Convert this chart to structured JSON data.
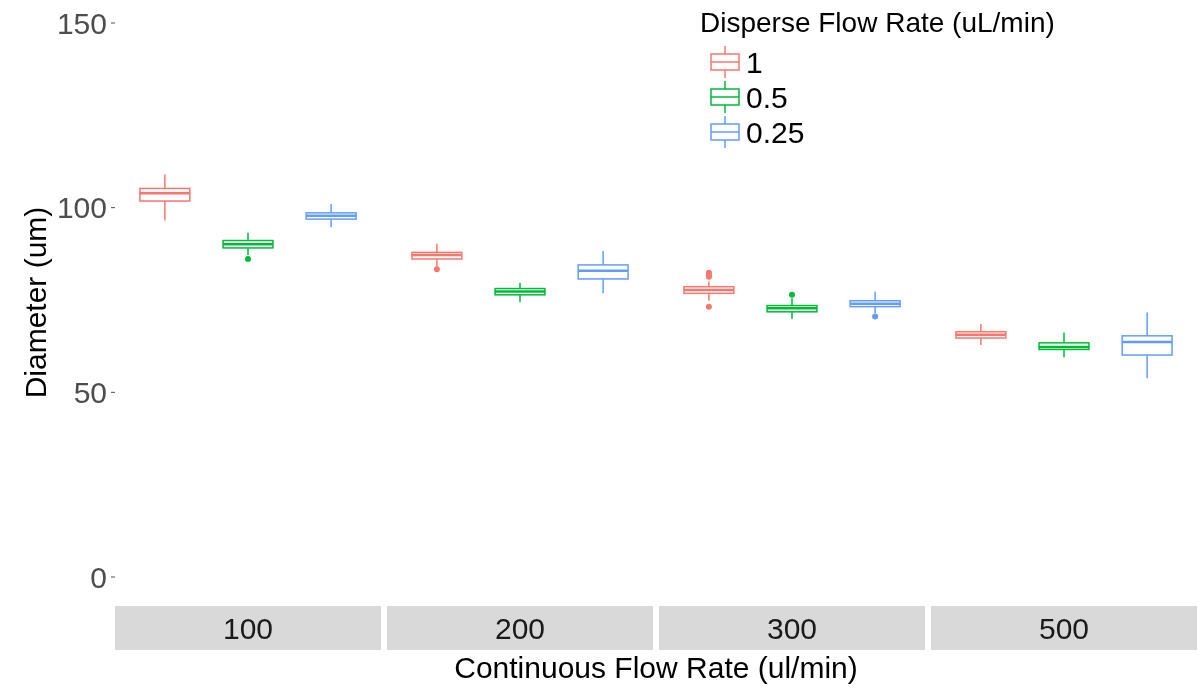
{
  "chart_data": {
    "type": "box",
    "xlabel": "Continuous Flow Rate (ul/min)",
    "ylabel": "Diameter (um)",
    "legend_title": "Disperse Flow Rate (uL/min)",
    "legend": "top right",
    "grid": false,
    "categories": [
      "100",
      "200",
      "300",
      "500"
    ],
    "ylim": [
      0,
      150
    ],
    "yticks": [
      0,
      50,
      100,
      150
    ],
    "series": [
      {
        "name": "1",
        "color": "#f8766d",
        "boxes": [
          {
            "low": 96.5,
            "q1": 101.8,
            "median": 103.9,
            "q3": 105.2,
            "high": 109
          },
          {
            "low": 84.0,
            "q1": 86.1,
            "median": 87.2,
            "q3": 87.9,
            "high": 90.2,
            "outliers": [
              83.3
            ]
          },
          {
            "low": 74.8,
            "q1": 76.8,
            "median": 77.7,
            "q3": 78.6,
            "high": 80.0,
            "outliers": [
              82.4,
              81.8,
              81.3,
              73.2
            ]
          },
          {
            "low": 62.8,
            "q1": 64.7,
            "median": 65.6,
            "q3": 66.4,
            "high": 68.5
          }
        ]
      },
      {
        "name": "0.5",
        "color": "#00ba38",
        "boxes": [
          {
            "low": 87.2,
            "q1": 89.1,
            "median": 90.1,
            "q3": 91.1,
            "high": 93.2,
            "outliers": [
              86.1
            ]
          },
          {
            "low": 74.4,
            "q1": 76.4,
            "median": 77.3,
            "q3": 78.1,
            "high": 79.7
          },
          {
            "low": 69.9,
            "q1": 71.8,
            "median": 72.8,
            "q3": 73.5,
            "high": 75.5,
            "outliers": [
              76.4
            ]
          },
          {
            "low": 59.5,
            "q1": 61.6,
            "median": 62.3,
            "q3": 63.4,
            "high": 66.2
          }
        ]
      },
      {
        "name": "0.25",
        "color": "#619cff",
        "boxes": [
          {
            "low": 94.7,
            "q1": 96.9,
            "median": 97.8,
            "q3": 98.6,
            "high": 101
          },
          {
            "low": 76.8,
            "q1": 80.7,
            "median": 82.9,
            "q3": 84.5,
            "high": 88.3
          },
          {
            "low": 71.4,
            "q1": 73.2,
            "median": 74.0,
            "q3": 74.8,
            "high": 77.2,
            "outliers": [
              70.5
            ]
          },
          {
            "low": 53.8,
            "q1": 60.1,
            "median": 63.6,
            "q3": 65.3,
            "high": 71.6
          }
        ]
      }
    ]
  }
}
